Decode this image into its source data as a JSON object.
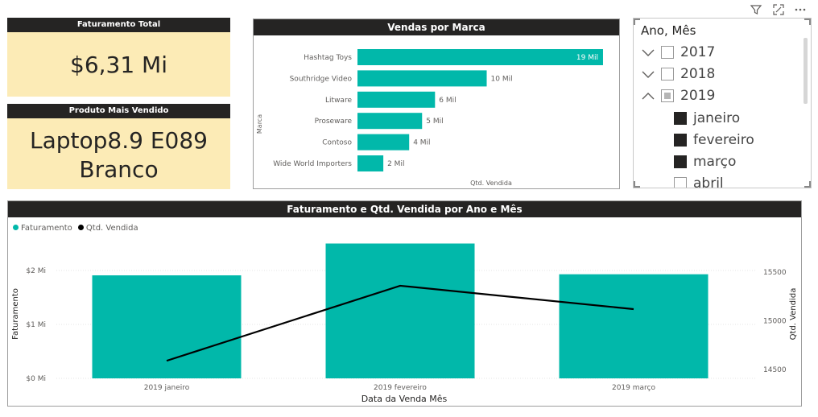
{
  "toolbar": {
    "filter_icon": "filter-icon",
    "focus_icon": "focus-mode-icon",
    "more_icon": "more-options-icon"
  },
  "kpi_revenue": {
    "title": "Faturamento Total",
    "value": "$6,31 Mi"
  },
  "kpi_product": {
    "title": "Produto Mais Vendido",
    "value_line1": "Laptop8.9 E089",
    "value_line2": "Branco"
  },
  "brand_chart": {
    "title": "Vendas por Marca",
    "ylabel": "Marca",
    "xlabel": "Qtd. Vendida",
    "color": "#01b8aa"
  },
  "slicer": {
    "title": "Ano, Mês",
    "years": [
      {
        "label": "2017",
        "expanded": false,
        "state": "unchecked"
      },
      {
        "label": "2018",
        "expanded": false,
        "state": "unchecked"
      },
      {
        "label": "2019",
        "expanded": true,
        "state": "partial"
      }
    ],
    "months": [
      {
        "label": "janeiro",
        "checked": true
      },
      {
        "label": "fevereiro",
        "checked": true
      },
      {
        "label": "março",
        "checked": true
      },
      {
        "label": "abril",
        "checked": false
      }
    ]
  },
  "combo_chart": {
    "title": "Faturamento e Qtd. Vendida por Ano e Mês",
    "legend": [
      {
        "label": "Faturamento",
        "color": "#01b8aa"
      },
      {
        "label": "Qtd. Vendida",
        "color": "#000000"
      }
    ],
    "xlabel": "Data da Venda Mês",
    "ylabel_left": "Faturamento",
    "ylabel_right": "Qtd. Vendida"
  },
  "chart_data": [
    {
      "type": "bar",
      "orientation": "horizontal",
      "title": "Vendas por Marca",
      "categories": [
        "Hashtag Toys",
        "Southridge Video",
        "Litware",
        "Proseware",
        "Contoso",
        "Wide World Importers"
      ],
      "values": [
        19,
        10,
        6,
        5,
        4,
        2
      ],
      "data_labels": [
        "19 Mil",
        "10 Mil",
        "6 Mil",
        "5 Mil",
        "4 Mil",
        "2 Mil"
      ],
      "xlabel": "Qtd. Vendida",
      "ylabel": "Marca",
      "xlim": [
        0,
        19.5
      ]
    },
    {
      "type": "bar",
      "title": "Faturamento e Qtd. Vendida por Ano e Mês",
      "categories": [
        "2019 janeiro",
        "2019 fevereiro",
        "2019 março"
      ],
      "series": [
        {
          "name": "Faturamento",
          "type": "bar",
          "axis": "left",
          "values": [
            1.91,
            2.5,
            1.93
          ],
          "color": "#01b8aa"
        },
        {
          "name": "Qtd. Vendida",
          "type": "line",
          "axis": "right",
          "values": [
            14590,
            15360,
            15120
          ],
          "color": "#000000"
        }
      ],
      "y_left": {
        "label": "Faturamento",
        "ticks": [
          0,
          1,
          2
        ],
        "tick_labels": [
          "$0 Mi",
          "$1 Mi",
          "$2 Mi"
        ],
        "range": [
          0,
          2.5
        ]
      },
      "y_right": {
        "label": "Qtd. Vendida",
        "ticks": [
          14500,
          15000,
          15500
        ],
        "tick_labels": [
          "14500",
          "15000",
          "15500"
        ],
        "range": [
          14400,
          15560
        ]
      },
      "xlabel": "Data da Venda Mês",
      "grid": true,
      "legend_position": "top-left"
    }
  ]
}
